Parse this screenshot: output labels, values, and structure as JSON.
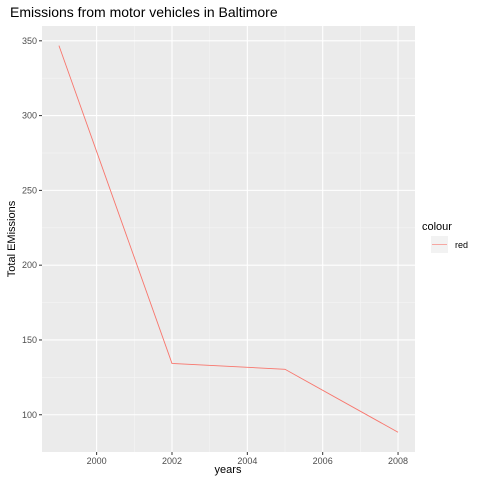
{
  "chart_data": {
    "type": "line",
    "title": "Emissions from motor vehicles in Baltimore",
    "xlabel": "years",
    "ylabel": "Total EMissions",
    "x": [
      1999,
      2002,
      2005,
      2008
    ],
    "series": [
      {
        "name": "red",
        "values": [
          346.8,
          134.3,
          130.4,
          88.3
        ],
        "color": "#F8766D"
      }
    ],
    "xlim": [
      1998.55,
      2008.45
    ],
    "ylim": [
      75.1,
      359.9
    ],
    "x_ticks": [
      2000,
      2002,
      2004,
      2006,
      2008
    ],
    "x_tick_labels": [
      "2000",
      "2002",
      "2004",
      "2006",
      "2008"
    ],
    "y_ticks": [
      100,
      150,
      200,
      250,
      300,
      350
    ],
    "y_tick_labels": [
      "100",
      "150",
      "200",
      "250",
      "300",
      "350"
    ],
    "grid": true,
    "legend": {
      "title": "colour",
      "placement": "right"
    },
    "colors": {
      "panel_background": "#EBEBEB",
      "grid_major": "#FFFFFF",
      "grid_minor": "#F5F5F5",
      "axis_text": "#4D4D4D",
      "series": "#F8766D"
    }
  }
}
